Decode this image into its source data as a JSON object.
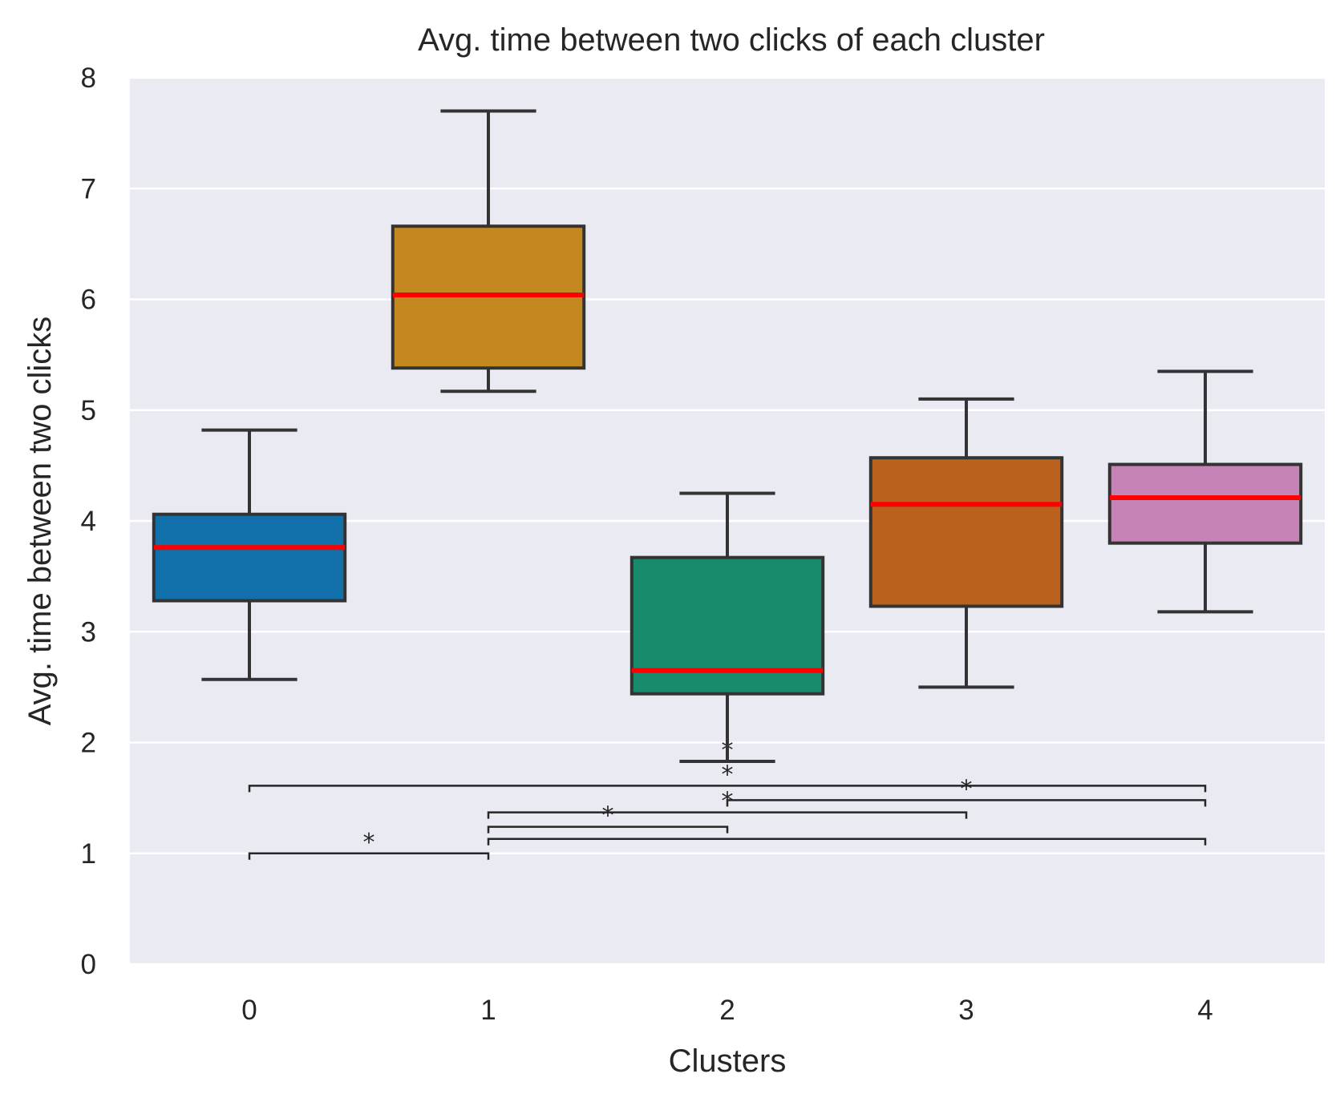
{
  "chart_data": {
    "type": "box",
    "title": "Avg. time between two clicks of each cluster",
    "xlabel": "Clusters",
    "ylabel": "Avg. time between two clicks",
    "categories": [
      "0",
      "1",
      "2",
      "3",
      "4"
    ],
    "ylim": [
      0,
      8
    ],
    "yticks": [
      "0",
      "1",
      "2",
      "3",
      "4",
      "5",
      "6",
      "7",
      "8"
    ],
    "grid": true,
    "median_color": "#ff0000",
    "boxes": [
      {
        "category": "0",
        "whisker_low": 2.57,
        "q1": 3.28,
        "median": 3.76,
        "q3": 4.06,
        "whisker_high": 4.82,
        "color": "#1170aa"
      },
      {
        "category": "1",
        "whisker_low": 5.17,
        "q1": 5.38,
        "median": 6.04,
        "q3": 6.66,
        "whisker_high": 7.7,
        "color": "#c48820"
      },
      {
        "category": "2",
        "whisker_low": 1.83,
        "q1": 2.44,
        "median": 2.65,
        "q3": 3.67,
        "whisker_high": 4.25,
        "color": "#178b6b"
      },
      {
        "category": "3",
        "whisker_low": 2.5,
        "q1": 3.23,
        "median": 4.15,
        "q3": 4.57,
        "whisker_high": 5.1,
        "color": "#b9611d"
      },
      {
        "category": "4",
        "whisker_low": 3.18,
        "q1": 3.8,
        "median": 4.21,
        "q3": 4.51,
        "whisker_high": 5.35,
        "color": "#c684b6"
      }
    ],
    "significance": [
      {
        "from": "0",
        "to": "1",
        "y": 1.0,
        "label": "*"
      },
      {
        "from": "1",
        "to": "2",
        "y": 1.24,
        "label": "*"
      },
      {
        "from": "1",
        "to": "3",
        "y": 1.37,
        "label": "*"
      },
      {
        "from": "1",
        "to": "4",
        "y": 1.13,
        "label": ""
      },
      {
        "from": "0",
        "to": "4",
        "y": 1.61,
        "label": "*"
      },
      {
        "from": "2",
        "to": "4",
        "y": 1.48,
        "label": "*"
      },
      {
        "from": "2",
        "to": "2",
        "y": 1.83,
        "label": "*"
      }
    ]
  }
}
